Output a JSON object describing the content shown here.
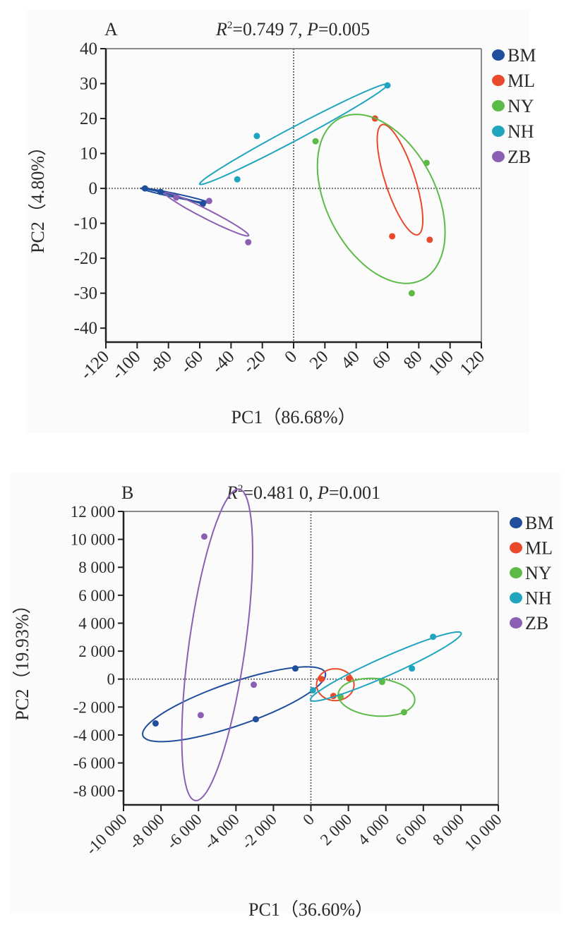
{
  "chart_data": [
    {
      "type": "scatter",
      "panel_label": "A",
      "title_r2": "0.749 7",
      "title_p": "0.005",
      "xlabel": "PC1（86.68%）",
      "ylabel": "PC2（4.80%）",
      "xlim": [
        -120,
        120
      ],
      "ylim": [
        -44,
        40
      ],
      "xticks": [
        -120,
        -100,
        -80,
        -60,
        -40,
        -20,
        0,
        20,
        40,
        60,
        80,
        100,
        120
      ],
      "xtick_labels": [
        "-120",
        "-100",
        "-80",
        "-60",
        "-40",
        "-20",
        "0",
        "20",
        "40",
        "60",
        "80",
        "100",
        "120"
      ],
      "yticks": [
        40,
        30,
        20,
        10,
        0,
        -10,
        -20,
        -30,
        -40
      ],
      "ytick_labels": [
        "40",
        "30",
        "20",
        "10",
        "0",
        "-10",
        "-20",
        "-30",
        "-40"
      ],
      "reference_lines": {
        "x": 0,
        "y": 0,
        "style": "dotted"
      },
      "legend": {
        "position": "right",
        "entries": [
          "BM",
          "ML",
          "NY",
          "NH",
          "ZB"
        ]
      },
      "series": [
        {
          "name": "BM",
          "color": "#1f4e9c",
          "points": [
            [
              -95,
              0
            ],
            [
              -85,
              -1
            ],
            [
              -58,
              -4.4
            ]
          ],
          "ellipse": {
            "cx": -76,
            "cy": -2.0,
            "rx": 22,
            "ry": 1.2,
            "angle_deg": -12
          }
        },
        {
          "name": "ML",
          "color": "#e8492a",
          "points": [
            [
              52,
              20
            ],
            [
              63,
              -13.7
            ],
            [
              87,
              -14.7
            ]
          ],
          "ellipse": {
            "cx": 68,
            "cy": 2.5,
            "rx": 37,
            "ry": 9.5,
            "angle_deg": -72
          }
        },
        {
          "name": "NY",
          "color": "#5cba47",
          "points": [
            [
              14,
              13.5
            ],
            [
              85,
              7.3
            ],
            [
              75.5,
              -30
            ]
          ],
          "ellipse": {
            "cx": 56,
            "cy": -3,
            "rx": 58,
            "ry": 35,
            "angle_deg": -63
          }
        },
        {
          "name": "NH",
          "color": "#21a5be",
          "points": [
            [
              -23.5,
              15
            ],
            [
              -36,
              2.6
            ],
            [
              60,
              29.5
            ]
          ],
          "ellipse": {
            "cx": 0,
            "cy": 15.5,
            "rx": 68,
            "ry": 4.2,
            "angle_deg": 28
          }
        },
        {
          "name": "ZB",
          "color": "#8b5fb3",
          "points": [
            [
              -75,
              -2.6
            ],
            [
              -54,
              -3.6
            ],
            [
              -29,
              -15.4
            ]
          ],
          "ellipse": {
            "cx": -55.5,
            "cy": -7.4,
            "rx": 30,
            "ry": 2.9,
            "angle_deg": -27
          }
        }
      ]
    },
    {
      "type": "scatter",
      "panel_label": "B",
      "title_r2": "0.481 0",
      "title_p": "0.001",
      "xlabel": "PC1（36.60%）",
      "ylabel": "PC2（19.93%）",
      "xlim": [
        -10000,
        10000
      ],
      "ylim": [
        -9000,
        12000
      ],
      "xticks": [
        -10000,
        -8000,
        -6000,
        -4000,
        -2000,
        0,
        2000,
        4000,
        6000,
        8000,
        10000
      ],
      "xtick_labels": [
        "-10 000",
        "-8 000",
        "-6 000",
        "-4 000",
        "-2 000",
        "0",
        "2 000",
        "4 000",
        "6 000",
        "8 000",
        "10 000"
      ],
      "yticks": [
        12000,
        10000,
        8000,
        6000,
        4000,
        2000,
        0,
        -2000,
        -4000,
        -6000,
        -8000
      ],
      "ytick_labels": [
        "12 000",
        "10 000",
        "8 000",
        "6 000",
        "4 000",
        "2 000",
        "0",
        "-2 000",
        "-4 000",
        "-6 000",
        "-8 000"
      ],
      "reference_lines": {
        "x": 0,
        "y": 0,
        "style": "dotted"
      },
      "legend": {
        "position": "right",
        "entries": [
          "BM",
          "ML",
          "NY",
          "NH",
          "ZB"
        ]
      },
      "series": [
        {
          "name": "BM",
          "color": "#1f4e9c",
          "points": [
            [
              -8290,
              -3170
            ],
            [
              -2940,
              -2870
            ],
            [
              -830,
              760
            ]
          ],
          "ellipse": {
            "cx": -4100,
            "cy": -1800,
            "rx": 5150,
            "ry": 1150,
            "angle_deg": 19
          }
        },
        {
          "name": "ML",
          "color": "#e8492a",
          "points": [
            [
              570,
              0
            ],
            [
              2030,
              50
            ],
            [
              1200,
              -1210
            ]
          ],
          "ellipse": {
            "cx": 1300,
            "cy": -400,
            "rx": 1000,
            "ry": 850,
            "angle_deg": 0
          }
        },
        {
          "name": "NY",
          "color": "#5cba47",
          "points": [
            [
              1580,
              -1260
            ],
            [
              3800,
              -200
            ],
            [
              4970,
              -2370
            ]
          ],
          "ellipse": {
            "cx": 3500,
            "cy": -1300,
            "rx": 2050,
            "ry": 1000,
            "angle_deg": -5
          }
        },
        {
          "name": "NH",
          "color": "#21a5be",
          "points": [
            [
              110,
              -800
            ],
            [
              5390,
              760
            ],
            [
              6520,
              3030
            ]
          ],
          "ellipse": {
            "cx": 4000,
            "cy": 900,
            "rx": 4400,
            "ry": 500,
            "angle_deg": 24
          }
        },
        {
          "name": "ZB",
          "color": "#8b5fb3",
          "points": [
            [
              -5690,
              10200
            ],
            [
              -5880,
              -2580
            ],
            [
              -3050,
              -400
            ]
          ],
          "ellipse": {
            "cx": -5000,
            "cy": 2450,
            "rx": 8400,
            "ry": 1500,
            "angle_deg": 82
          }
        }
      ]
    }
  ]
}
